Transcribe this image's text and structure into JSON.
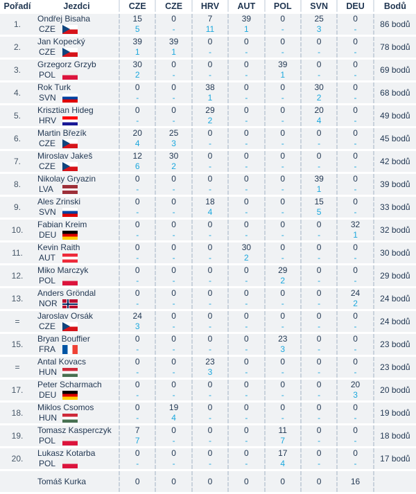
{
  "headers": {
    "rank": "Pořadí",
    "rider": "Jezdci",
    "events": [
      "CZE",
      "CZE",
      "HRV",
      "AUT",
      "POL",
      "SVN",
      "DEU"
    ],
    "total": "Bodů"
  },
  "flag_colors": {
    "CZE": [
      "#ffffff",
      "#d7141a",
      "#11457e"
    ],
    "POL": [
      "#eeeeee",
      "#dc143c"
    ],
    "SVN": [
      "#ffffff",
      "#0041a0",
      "#e00000"
    ],
    "HRV": [
      "#ff0000",
      "#ffffff",
      "#171796"
    ],
    "LVA": [
      "#9e3039",
      "#ffffff",
      "#9e3039"
    ],
    "DEU": [
      "#000000",
      "#dd0000",
      "#ffce00"
    ],
    "AUT": [
      "#ed2939",
      "#ffffff",
      "#ed2939"
    ],
    "NOR": [
      "#ba0c2f",
      "#ffffff",
      "#00205b"
    ],
    "FRA": [
      "#0055a4",
      "#ffffff",
      "#ef4135"
    ],
    "HUN": [
      "#ce2939",
      "#ffffff",
      "#477050"
    ]
  },
  "rows": [
    {
      "rank": "1.",
      "name": "Ondřej Bisaha",
      "country": "CZE",
      "points": [
        "15",
        "0",
        "7",
        "39",
        "0",
        "25",
        "0"
      ],
      "places": [
        "5",
        "-",
        "11",
        "1",
        "-",
        "3",
        "-"
      ],
      "total": "86 bodů"
    },
    {
      "rank": "2.",
      "name": "Jan Kopecký",
      "country": "CZE",
      "points": [
        "39",
        "39",
        "0",
        "0",
        "0",
        "0",
        "0"
      ],
      "places": [
        "1",
        "1",
        "-",
        "-",
        "-",
        "-",
        "-"
      ],
      "total": "78 bodů"
    },
    {
      "rank": "3.",
      "name": "Grzegorz Grzyb",
      "country": "POL",
      "points": [
        "30",
        "0",
        "0",
        "0",
        "39",
        "0",
        "0"
      ],
      "places": [
        "2",
        "-",
        "-",
        "-",
        "1",
        "-",
        "-"
      ],
      "total": "69 bodů"
    },
    {
      "rank": "4.",
      "name": "Rok Turk",
      "country": "SVN",
      "points": [
        "0",
        "0",
        "38",
        "0",
        "0",
        "30",
        "0"
      ],
      "places": [
        "-",
        "-",
        "1",
        "-",
        "-",
        "2",
        "-"
      ],
      "total": "68 bodů"
    },
    {
      "rank": "5.",
      "name": "Krisztian Hideg",
      "country": "HRV",
      "points": [
        "0",
        "0",
        "29",
        "0",
        "0",
        "20",
        "0"
      ],
      "places": [
        "-",
        "-",
        "2",
        "-",
        "-",
        "4",
        "-"
      ],
      "total": "49 bodů"
    },
    {
      "rank": "6.",
      "name": "Martin Březík",
      "country": "CZE",
      "points": [
        "20",
        "25",
        "0",
        "0",
        "0",
        "0",
        "0"
      ],
      "places": [
        "4",
        "3",
        "-",
        "-",
        "-",
        "-",
        "-"
      ],
      "total": "45 bodů"
    },
    {
      "rank": "7.",
      "name": "Miroslav Jakeš",
      "country": "CZE",
      "points": [
        "12",
        "30",
        "0",
        "0",
        "0",
        "0",
        "0"
      ],
      "places": [
        "6",
        "2",
        "-",
        "-",
        "-",
        "-",
        "-"
      ],
      "total": "42 bodů"
    },
    {
      "rank": "8.",
      "name": "Nikolay Gryazin",
      "country": "LVA",
      "points": [
        "0",
        "0",
        "0",
        "0",
        "0",
        "39",
        "0"
      ],
      "places": [
        "-",
        "-",
        "-",
        "-",
        "-",
        "1",
        "-"
      ],
      "total": "39 bodů"
    },
    {
      "rank": "9.",
      "name": "Ales Zrinski",
      "country": "SVN",
      "points": [
        "0",
        "0",
        "18",
        "0",
        "0",
        "15",
        "0"
      ],
      "places": [
        "-",
        "-",
        "4",
        "-",
        "-",
        "5",
        "-"
      ],
      "total": "33 bodů"
    },
    {
      "rank": "10.",
      "name": "Fabian Kreim",
      "country": "DEU",
      "points": [
        "0",
        "0",
        "0",
        "0",
        "0",
        "0",
        "32"
      ],
      "places": [
        "-",
        "-",
        "-",
        "-",
        "-",
        "-",
        "1"
      ],
      "total": "32 bodů"
    },
    {
      "rank": "11.",
      "name": "Kevin Raith",
      "country": "AUT",
      "points": [
        "0",
        "0",
        "0",
        "30",
        "0",
        "0",
        "0"
      ],
      "places": [
        "-",
        "-",
        "-",
        "2",
        "-",
        "-",
        "-"
      ],
      "total": "30 bodů"
    },
    {
      "rank": "12.",
      "name": "Miko Marczyk",
      "country": "POL",
      "points": [
        "0",
        "0",
        "0",
        "0",
        "29",
        "0",
        "0"
      ],
      "places": [
        "-",
        "-",
        "-",
        "-",
        "2",
        "-",
        "-"
      ],
      "total": "29 bodů"
    },
    {
      "rank": "13.",
      "name": "Anders Gröndal",
      "country": "NOR",
      "points": [
        "0",
        "0",
        "0",
        "0",
        "0",
        "0",
        "24"
      ],
      "places": [
        "-",
        "-",
        "-",
        "-",
        "-",
        "-",
        "2"
      ],
      "total": "24 bodů"
    },
    {
      "rank": "=",
      "name": "Jaroslav Orsák",
      "country": "CZE",
      "points": [
        "24",
        "0",
        "0",
        "0",
        "0",
        "0",
        "0"
      ],
      "places": [
        "3",
        "-",
        "-",
        "-",
        "-",
        "-",
        "-"
      ],
      "total": "24 bodů"
    },
    {
      "rank": "15.",
      "name": "Bryan Bouffier",
      "country": "FRA",
      "points": [
        "0",
        "0",
        "0",
        "0",
        "23",
        "0",
        "0"
      ],
      "places": [
        "-",
        "-",
        "-",
        "-",
        "3",
        "-",
        "-"
      ],
      "total": "23 bodů"
    },
    {
      "rank": "=",
      "name": "Antal Kovacs",
      "country": "HUN",
      "points": [
        "0",
        "0",
        "23",
        "0",
        "0",
        "0",
        "0"
      ],
      "places": [
        "-",
        "-",
        "3",
        "-",
        "-",
        "-",
        "-"
      ],
      "total": "23 bodů"
    },
    {
      "rank": "17.",
      "name": "Peter Scharmach",
      "country": "DEU",
      "points": [
        "0",
        "0",
        "0",
        "0",
        "0",
        "0",
        "20"
      ],
      "places": [
        "-",
        "-",
        "-",
        "-",
        "-",
        "-",
        "3"
      ],
      "total": "20 bodů"
    },
    {
      "rank": "18.",
      "name": "Miklos Csomos",
      "country": "HUN",
      "points": [
        "0",
        "19",
        "0",
        "0",
        "0",
        "0",
        "0"
      ],
      "places": [
        "-",
        "4",
        "-",
        "-",
        "-",
        "-",
        "-"
      ],
      "total": "19 bodů"
    },
    {
      "rank": "19.",
      "name": "Tomasz Kasperczyk",
      "country": "POL",
      "points": [
        "7",
        "0",
        "0",
        "0",
        "11",
        "0",
        "0"
      ],
      "places": [
        "7",
        "-",
        "-",
        "-",
        "7",
        "-",
        "-"
      ],
      "total": "18 bodů"
    },
    {
      "rank": "20.",
      "name": "Lukasz Kotarba",
      "country": "POL",
      "points": [
        "0",
        "0",
        "0",
        "0",
        "17",
        "0",
        "0"
      ],
      "places": [
        "-",
        "-",
        "-",
        "-",
        "4",
        "-",
        "-"
      ],
      "total": "17 bodů"
    },
    {
      "rank": "",
      "name": "Tomáš Kurka",
      "country": "",
      "points": [
        "0",
        "0",
        "0",
        "0",
        "0",
        "0",
        "16"
      ],
      "places": [
        "",
        "",
        "",
        "",
        "",
        "",
        ""
      ],
      "total": ""
    }
  ]
}
